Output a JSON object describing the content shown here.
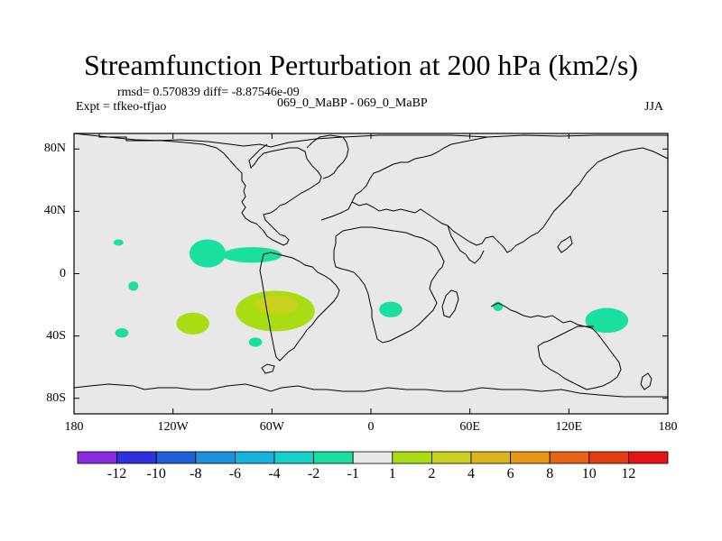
{
  "title": "Streamfunction Perturbation at 200 hPa (km2/s)",
  "stats_line": "rmsd= 0.570839 diff= -8.87546e-09",
  "expt_label": "Expt = tfkeo-tfjao",
  "case_label": "069_0_MaBP - 069_0_MaBP",
  "season": "JJA",
  "map": {
    "lon_range": [
      -180,
      180
    ],
    "lat_range": [
      -90,
      90
    ],
    "background_color": "#e8e8e8",
    "coastline_color": "#000000",
    "x_tick_labels": [
      "180",
      "120W",
      "60W",
      "0",
      "60E",
      "120E",
      "180"
    ],
    "x_tick_values": [
      -180,
      -120,
      -60,
      0,
      60,
      120,
      180
    ],
    "y_tick_labels": [
      "80N",
      "40N",
      "0",
      "40S",
      "80S"
    ],
    "y_tick_values": [
      80,
      40,
      0,
      -40,
      -80
    ]
  },
  "colorbar": {
    "colors": [
      "#8a2be2",
      "#3030e0",
      "#1e5fd8",
      "#1e90e0",
      "#14b4dc",
      "#14d2c8",
      "#19e0a0",
      "#e8e8e8",
      "#aadc14",
      "#c8d21e",
      "#dcb41e",
      "#e69614",
      "#e66414",
      "#e63c14",
      "#e61414"
    ],
    "labels": [
      "-12",
      "-10",
      "-8",
      "-6",
      "-4",
      "-2",
      "-1",
      "1",
      "2",
      "4",
      "6",
      "8",
      "10",
      "12"
    ]
  },
  "anomalies": [
    {
      "lon": -153,
      "lat": 20,
      "rlon": 3,
      "rlat": 2,
      "color": "#19e0a0"
    },
    {
      "lon": -99,
      "lat": 13,
      "rlon": 11,
      "rlat": 9,
      "color": "#19e0a0"
    },
    {
      "lon": -72,
      "lat": 12,
      "rlon": 18,
      "rlat": 5,
      "color": "#19e0a0"
    },
    {
      "lon": -144,
      "lat": -8,
      "rlon": 3,
      "rlat": 3,
      "color": "#19e0a0"
    },
    {
      "lon": -151,
      "lat": -38,
      "rlon": 4,
      "rlat": 3,
      "color": "#19e0a0"
    },
    {
      "lon": -108,
      "lat": -32,
      "rlon": 10,
      "rlat": 7,
      "color": "#aadc14"
    },
    {
      "lon": -58,
      "lat": -24,
      "rlon": 24,
      "rlat": 13,
      "color": "#aadc14"
    },
    {
      "lon": -57,
      "lat": -20,
      "rlon": 13,
      "rlat": 6,
      "color": "#c8d21e"
    },
    {
      "lon": -70,
      "lat": -44,
      "rlon": 4,
      "rlat": 3,
      "color": "#19e0a0"
    },
    {
      "lon": 12,
      "lat": -23,
      "rlon": 7,
      "rlat": 5,
      "color": "#19e0a0"
    },
    {
      "lon": 77,
      "lat": -21,
      "rlon": 3,
      "rlat": 3,
      "color": "#19e0a0"
    },
    {
      "lon": 143,
      "lat": -30,
      "rlon": 13,
      "rlat": 8,
      "color": "#19e0a0"
    }
  ]
}
